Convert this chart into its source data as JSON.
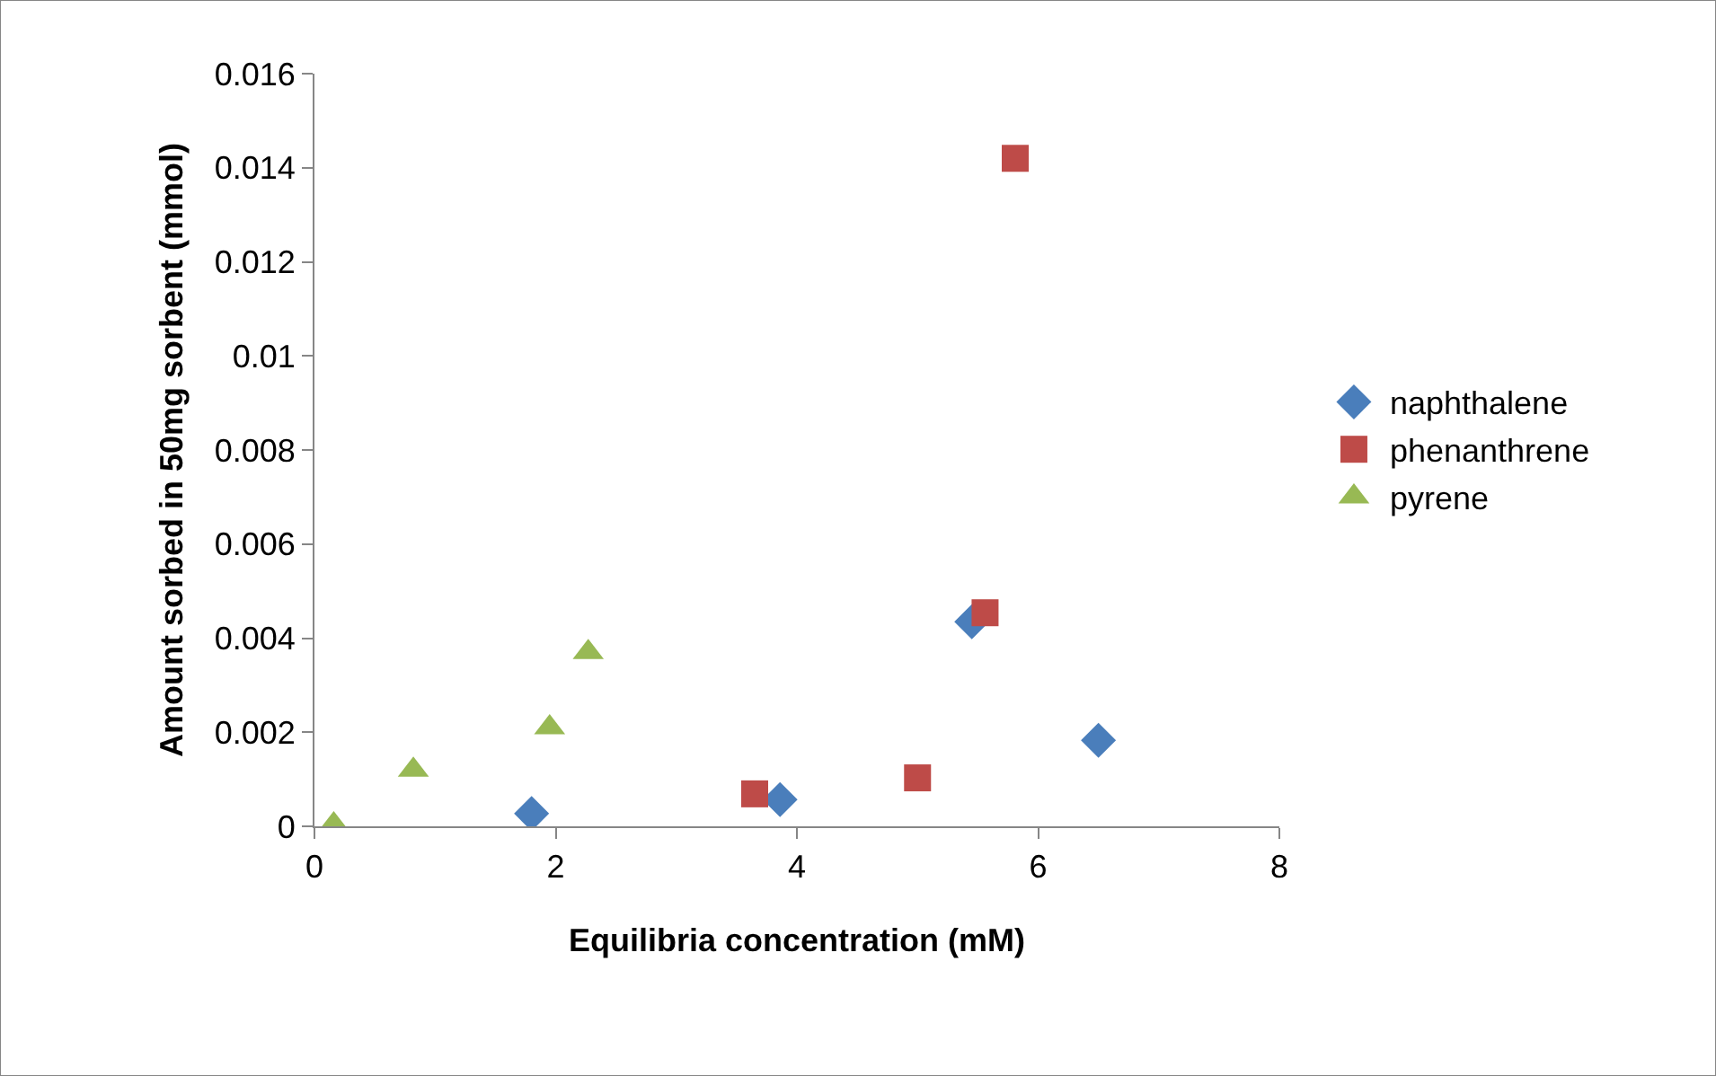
{
  "chart_data": {
    "type": "scatter",
    "xlabel": "Equilibria concentration (mM)",
    "ylabel": "Amount sorbed in 50mg sorbent (mmol)",
    "xlim": [
      0,
      8
    ],
    "xticks": [
      0,
      2,
      4,
      6,
      8
    ],
    "ylim": [
      0,
      0.016
    ],
    "yticks": [
      0,
      0.002,
      0.004,
      0.006,
      0.008,
      0.01,
      0.012,
      0.014,
      0.016
    ],
    "grid": false,
    "legend": "right",
    "series": [
      {
        "name": "naphthalene",
        "color": "#4a7ebb",
        "marker": "diamond",
        "x": [
          1.8,
          3.86,
          5.45,
          6.5
        ],
        "values": [
          0.00027,
          0.00057,
          0.00435,
          0.00183
        ]
      },
      {
        "name": "phenanthrene",
        "color": "#be4b48",
        "marker": "square",
        "x": [
          3.65,
          5.0,
          5.56,
          5.81
        ],
        "values": [
          0.00069,
          0.00103,
          0.00454,
          0.0142
        ]
      },
      {
        "name": "pyrene",
        "color": "#98b954",
        "marker": "triangle",
        "x": [
          0.16,
          0.82,
          1.95,
          2.27
        ],
        "values": [
          4e-05,
          0.0012,
          0.0021,
          0.0037
        ]
      }
    ]
  }
}
